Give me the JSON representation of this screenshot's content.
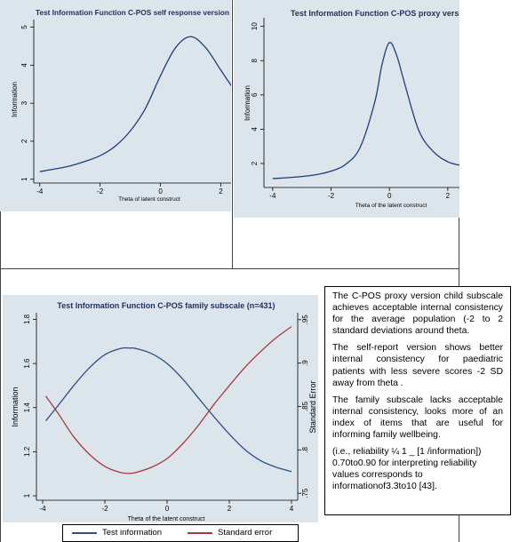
{
  "chart_data": [
    {
      "type": "line",
      "title": "Test Information Function C-POS self response version (n=",
      "xlabel": "Theta of latent construct",
      "ylabel": "Information",
      "xlim": [
        -4.2,
        2.4
      ],
      "ylim": [
        0.9,
        5.2
      ],
      "x_ticks": [
        "-4",
        "-2",
        "0",
        "2"
      ],
      "y_ticks": [
        "1",
        "2",
        "3",
        "4",
        "5"
      ],
      "series": [
        {
          "color": "#1f3d7a",
          "x": [
            -4,
            -3.5,
            -3,
            -2.5,
            -2,
            -1.5,
            -1,
            -0.5,
            0,
            0.5,
            1,
            1.5,
            2,
            2.4
          ],
          "y": [
            1.2,
            1.27,
            1.35,
            1.47,
            1.62,
            1.87,
            2.27,
            2.86,
            3.72,
            4.46,
            4.75,
            4.46,
            3.87,
            3.4
          ]
        }
      ]
    },
    {
      "type": "line",
      "title": "Test Information Function C-POS proxy version",
      "xlabel": "Theta  of the latent construct",
      "ylabel": "Information",
      "xlim": [
        -4.3,
        2.4
      ],
      "ylim": [
        0.6,
        10.5
      ],
      "x_ticks": [
        "-4",
        "-2",
        "0",
        "2"
      ],
      "y_ticks": [
        "2",
        "4",
        "6",
        "8",
        "10"
      ],
      "series": [
        {
          "color": "#1f3d7a",
          "x": [
            -4,
            -3.5,
            -3,
            -2.5,
            -2,
            -1.5,
            -1,
            -0.5,
            -0.25,
            0,
            0.25,
            0.5,
            1,
            1.5,
            2,
            2.4
          ],
          "y": [
            1.12,
            1.17,
            1.24,
            1.35,
            1.55,
            1.95,
            2.95,
            5.6,
            7.8,
            9.05,
            8.3,
            6.8,
            3.95,
            2.7,
            2.1,
            1.9
          ]
        }
      ]
    },
    {
      "type": "line",
      "title": "Test Information Function C-POS family subscale (n=431)",
      "xlabel": "Theta of the latent construct",
      "ylabel": "Information",
      "ylabel2": "Standard Error",
      "xlim": [
        -4.2,
        4.2
      ],
      "ylim": [
        0.98,
        1.83
      ],
      "ylim2": [
        0.742,
        0.958
      ],
      "x_ticks": [
        "-4",
        "-2",
        "0",
        "2",
        "4"
      ],
      "y_ticks": [
        "1",
        "1.2",
        "1.4",
        "1.6",
        "1.8"
      ],
      "y2_ticks": [
        ".75",
        ".8",
        ".85",
        ".9",
        ".95"
      ],
      "legend_position": "bottom",
      "series": [
        {
          "name": "Test information",
          "axis": "left",
          "color": "#2a5080",
          "x": [
            -3.9,
            -3.5,
            -3,
            -2.5,
            -2,
            -1.5,
            -1.2,
            -1,
            -0.5,
            0,
            0.5,
            1,
            1.5,
            2,
            2.5,
            3,
            3.5,
            4
          ],
          "y": [
            1.34,
            1.41,
            1.5,
            1.58,
            1.64,
            1.668,
            1.67,
            1.668,
            1.645,
            1.6,
            1.53,
            1.445,
            1.36,
            1.28,
            1.21,
            1.16,
            1.13,
            1.11
          ]
        },
        {
          "name": "Standard error",
          "axis": "right",
          "color": "#a33a3a",
          "x": [
            -3.9,
            -3.5,
            -3,
            -2.5,
            -2,
            -1.5,
            -1.2,
            -1,
            -0.5,
            0,
            0.5,
            1,
            1.5,
            2,
            2.5,
            3,
            3.5,
            4
          ],
          "y": [
            0.862,
            0.842,
            0.815,
            0.795,
            0.781,
            0.774,
            0.773,
            0.774,
            0.78,
            0.79,
            0.807,
            0.828,
            0.852,
            0.874,
            0.895,
            0.913,
            0.929,
            0.942
          ]
        }
      ]
    }
  ],
  "notes": {
    "p1": "The C-POS proxy version child subscale achieves acceptable internal consistency for the average population (-2 to 2 standard deviations around theta.",
    "p2": "The self-report version shows better internal consistency for paediatric patients with less severe scores -2 SD away from theta .",
    "p3": "The family subscale lacks acceptable internal consistency, looks more of an index of items that are useful for informing family wellbeing.",
    "p4": "(i.e., reliability ¼ 1 _ [1 /information]) 0.70to0.90 for interpreting reliability values corresponds to informationof3.3to10 [43]."
  }
}
